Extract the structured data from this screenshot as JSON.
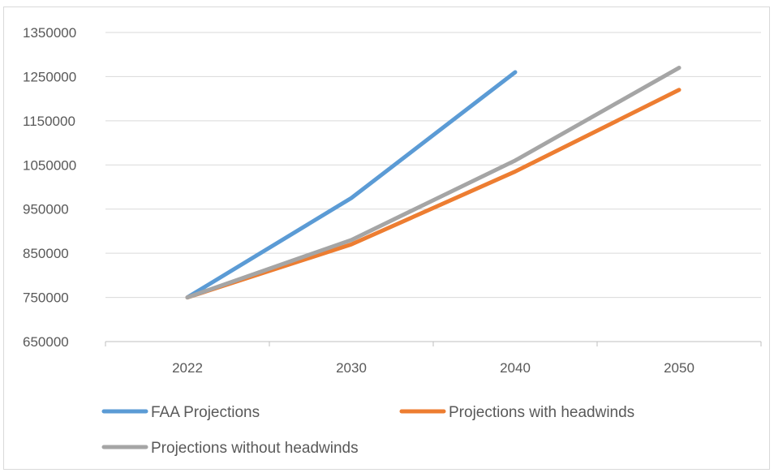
{
  "chart_data": {
    "type": "line",
    "title": "",
    "xlabel": "",
    "ylabel": "",
    "categories": [
      "2022",
      "2030",
      "2040",
      "2050"
    ],
    "ylim": [
      650000,
      1350000
    ],
    "yticks": [
      650000,
      750000,
      850000,
      950000,
      1050000,
      1150000,
      1250000,
      1350000
    ],
    "ytick_labels": [
      "650000",
      "750000",
      "850000",
      "950000",
      "1050000",
      "1150000",
      "1250000",
      "1350000"
    ],
    "grid": "horizontal",
    "legend_position": "bottom",
    "series": [
      {
        "name": "FAA Projections",
        "color": "#5b9bd5",
        "values": [
          750000,
          975000,
          1260000,
          null
        ]
      },
      {
        "name": "Projections with headwinds",
        "color": "#ed7d31",
        "values": [
          750000,
          870000,
          1035000,
          1220000
        ]
      },
      {
        "name": "Projections without headwinds",
        "color": "#a5a5a5",
        "values": [
          750000,
          880000,
          1060000,
          1270000
        ]
      }
    ]
  }
}
